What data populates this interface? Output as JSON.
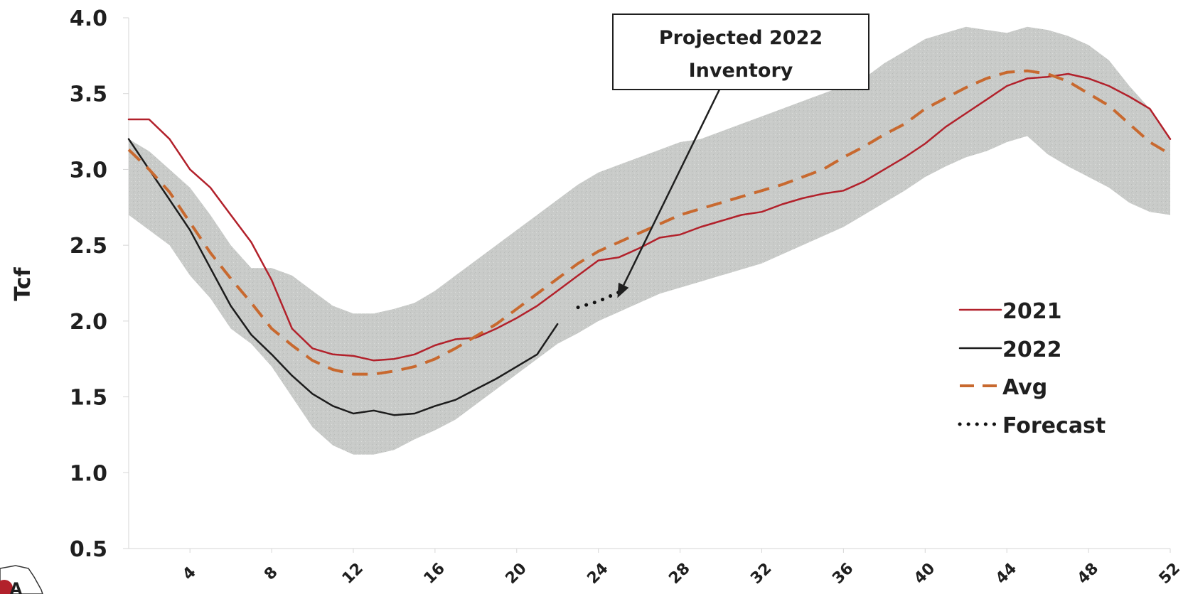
{
  "chart_data": {
    "type": "line",
    "ylabel": "Tcf",
    "xlabel": "",
    "ylim": [
      0.5,
      4.0
    ],
    "xlim": [
      1,
      52
    ],
    "y_ticks": [
      "0.5",
      "1.0",
      "1.5",
      "2.0",
      "2.5",
      "3.0",
      "3.5",
      "4.0"
    ],
    "x_ticks": [
      "4",
      "8",
      "12",
      "16",
      "20",
      "24",
      "28",
      "32",
      "36",
      "40",
      "44",
      "48",
      "52"
    ],
    "grid": false,
    "legend_position": "right",
    "band": {
      "x": [
        1,
        2,
        3,
        4,
        5,
        6,
        7,
        8,
        9,
        10,
        11,
        12,
        13,
        14,
        15,
        16,
        17,
        18,
        19,
        20,
        21,
        22,
        23,
        24,
        25,
        26,
        27,
        28,
        29,
        30,
        31,
        32,
        33,
        34,
        35,
        36,
        37,
        38,
        39,
        40,
        41,
        42,
        43,
        44,
        45,
        46,
        47,
        48,
        49,
        50,
        51,
        52
      ],
      "upper": [
        3.2,
        3.12,
        3.0,
        2.88,
        2.7,
        2.5,
        2.35,
        2.35,
        2.3,
        2.2,
        2.1,
        2.05,
        2.05,
        2.08,
        2.12,
        2.2,
        2.3,
        2.4,
        2.5,
        2.6,
        2.7,
        2.8,
        2.9,
        2.98,
        3.03,
        3.08,
        3.13,
        3.18,
        3.2,
        3.25,
        3.3,
        3.35,
        3.4,
        3.45,
        3.5,
        3.55,
        3.6,
        3.7,
        3.78,
        3.86,
        3.9,
        3.94,
        3.92,
        3.9,
        3.94,
        3.92,
        3.88,
        3.82,
        3.72,
        3.55,
        3.4,
        3.2
      ],
      "lower": [
        2.7,
        2.6,
        2.5,
        2.3,
        2.15,
        1.95,
        1.85,
        1.7,
        1.5,
        1.3,
        1.18,
        1.12,
        1.12,
        1.15,
        1.22,
        1.28,
        1.35,
        1.45,
        1.55,
        1.65,
        1.75,
        1.85,
        1.92,
        2.0,
        2.06,
        2.12,
        2.18,
        2.22,
        2.26,
        2.3,
        2.34,
        2.38,
        2.44,
        2.5,
        2.56,
        2.62,
        2.7,
        2.78,
        2.86,
        2.95,
        3.02,
        3.08,
        3.12,
        3.18,
        3.22,
        3.1,
        3.02,
        2.95,
        2.88,
        2.78,
        2.72,
        2.7
      ]
    },
    "series": [
      {
        "name": "2021",
        "x": [
          1,
          2,
          3,
          4,
          5,
          6,
          7,
          8,
          9,
          10,
          11,
          12,
          13,
          14,
          15,
          16,
          17,
          18,
          19,
          20,
          21,
          22,
          23,
          24,
          25,
          26,
          27,
          28,
          29,
          30,
          31,
          32,
          33,
          34,
          35,
          36,
          37,
          38,
          39,
          40,
          41,
          42,
          43,
          44,
          45,
          46,
          47,
          48,
          49,
          50,
          51,
          52
        ],
        "values": [
          3.33,
          3.33,
          3.2,
          3.0,
          2.88,
          2.7,
          2.52,
          2.27,
          1.95,
          1.82,
          1.78,
          1.77,
          1.74,
          1.75,
          1.78,
          1.84,
          1.88,
          1.89,
          1.95,
          2.02,
          2.1,
          2.2,
          2.3,
          2.4,
          2.42,
          2.48,
          2.55,
          2.57,
          2.62,
          2.66,
          2.7,
          2.72,
          2.77,
          2.81,
          2.84,
          2.86,
          2.92,
          3.0,
          3.08,
          3.17,
          3.28,
          3.37,
          3.46,
          3.55,
          3.6,
          3.61,
          3.63,
          3.6,
          3.55,
          3.48,
          3.4,
          3.2
        ]
      },
      {
        "name": "2022",
        "x": [
          1,
          2,
          3,
          4,
          5,
          6,
          7,
          8,
          9,
          10,
          11,
          12,
          13,
          14,
          15,
          16,
          17,
          18,
          19,
          20,
          21,
          22
        ],
        "values": [
          3.2,
          3.0,
          2.8,
          2.6,
          2.35,
          2.1,
          1.91,
          1.78,
          1.64,
          1.52,
          1.44,
          1.39,
          1.41,
          1.38,
          1.39,
          1.44,
          1.48,
          1.55,
          1.62,
          1.7,
          1.78,
          1.98
        ]
      },
      {
        "name": "Avg",
        "x": [
          1,
          2,
          3,
          4,
          5,
          6,
          7,
          8,
          9,
          10,
          11,
          12,
          13,
          14,
          15,
          16,
          17,
          18,
          19,
          20,
          21,
          22,
          23,
          24,
          25,
          26,
          27,
          28,
          29,
          30,
          31,
          32,
          33,
          34,
          35,
          36,
          37,
          38,
          39,
          40,
          41,
          42,
          43,
          44,
          45,
          46,
          47,
          48,
          49,
          50,
          51,
          52
        ],
        "values": [
          3.13,
          3.0,
          2.85,
          2.65,
          2.45,
          2.28,
          2.12,
          1.95,
          1.84,
          1.74,
          1.68,
          1.65,
          1.65,
          1.67,
          1.7,
          1.75,
          1.82,
          1.9,
          1.98,
          2.08,
          2.18,
          2.28,
          2.38,
          2.46,
          2.52,
          2.58,
          2.64,
          2.7,
          2.74,
          2.78,
          2.82,
          2.86,
          2.9,
          2.95,
          3.0,
          3.08,
          3.15,
          3.23,
          3.3,
          3.4,
          3.47,
          3.54,
          3.6,
          3.64,
          3.65,
          3.63,
          3.58,
          3.5,
          3.42,
          3.3,
          3.18,
          3.1
        ]
      },
      {
        "name": "Forecast",
        "x": [
          23,
          24,
          25
        ],
        "values": [
          2.09,
          2.13,
          2.19
        ]
      }
    ],
    "annotation": {
      "text_line1": "Projected 2022",
      "text_line2": "Inventory",
      "points_to_x": 25,
      "points_to_y": 2.19
    }
  },
  "colors": {
    "series_2021": "#b2212b",
    "series_2022": "#1c1c1c",
    "series_avg": "#c8692f",
    "series_forecast": "#111111",
    "band": "#c9cbc9"
  }
}
